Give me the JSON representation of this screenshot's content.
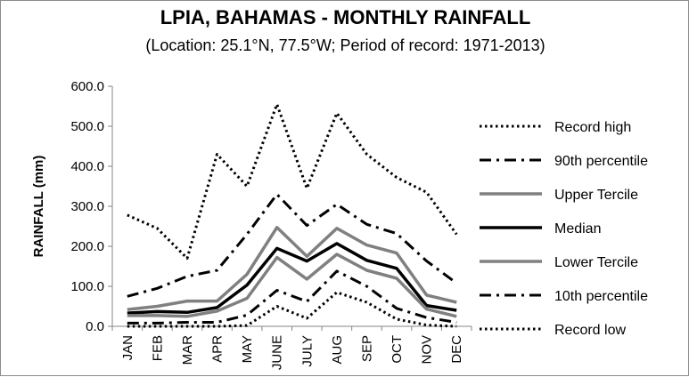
{
  "chart_data": {
    "type": "line",
    "title": "LPIA, BAHAMAS - MONTHLY RAINFALL",
    "subtitle": "(Location: 25.1°N, 77.5°W; Period of record: 1971-2013)",
    "xlabel": "",
    "ylabel": "RAINFALL (mm)",
    "ylim": [
      0,
      600
    ],
    "yticks": [
      "0.0",
      "100.0",
      "200.0",
      "300.0",
      "400.0",
      "500.0",
      "600.0"
    ],
    "categories": [
      "JAN",
      "FEB",
      "MAR",
      "APR",
      "MAY",
      "JUNE",
      "JULY",
      "AUG",
      "SEP",
      "OCT",
      "NOV",
      "DEC"
    ],
    "grid": false,
    "legend_position": "right",
    "series": [
      {
        "name": "Record high",
        "style": "dotted",
        "color": "#000000",
        "width": 3,
        "values": [
          278,
          245,
          170,
          430,
          350,
          555,
          345,
          533,
          430,
          372,
          335,
          230
        ]
      },
      {
        "name": "90th percentile",
        "style": "dashdot",
        "color": "#000000",
        "width": 3,
        "values": [
          75,
          95,
          125,
          140,
          230,
          330,
          252,
          305,
          255,
          232,
          163,
          108
        ]
      },
      {
        "name": "Upper Tercile",
        "style": "solid",
        "color": "#808080",
        "width": 3.5,
        "values": [
          42,
          50,
          63,
          63,
          130,
          247,
          175,
          245,
          203,
          183,
          78,
          60
        ]
      },
      {
        "name": "Median",
        "style": "solid",
        "color": "#000000",
        "width": 3.5,
        "values": [
          33,
          37,
          35,
          47,
          103,
          195,
          163,
          207,
          165,
          145,
          52,
          40
        ]
      },
      {
        "name": "Lower Tercile",
        "style": "solid",
        "color": "#808080",
        "width": 3.5,
        "values": [
          27,
          27,
          25,
          38,
          70,
          172,
          118,
          180,
          140,
          120,
          43,
          25
        ]
      },
      {
        "name": "10th percentile",
        "style": "dashdot",
        "color": "#000000",
        "width": 3,
        "values": [
          8,
          8,
          10,
          10,
          28,
          90,
          62,
          138,
          100,
          45,
          22,
          10
        ]
      },
      {
        "name": "Record low",
        "style": "dotted",
        "color": "#000000",
        "width": 3,
        "values": [
          0,
          0,
          0,
          0,
          2,
          50,
          20,
          85,
          60,
          18,
          3,
          0
        ]
      }
    ]
  }
}
